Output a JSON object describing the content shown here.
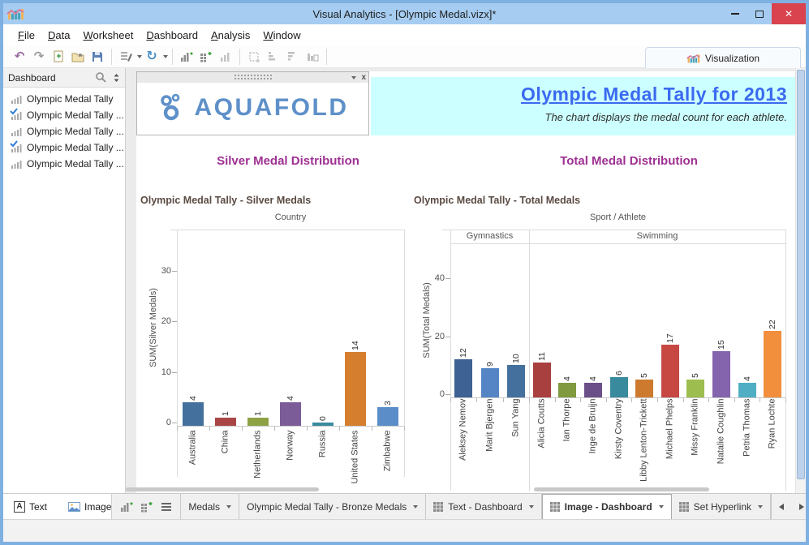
{
  "window": {
    "title": "Visual Analytics - [Olympic Medal.vizx]*"
  },
  "menu": {
    "items": [
      "File",
      "Data",
      "Worksheet",
      "Dashboard",
      "Analysis",
      "Window"
    ]
  },
  "toolbar": {
    "visualization_label": "Visualization"
  },
  "sidebar": {
    "header": "Dashboard",
    "items": [
      {
        "label": "Olympic Medal Tally",
        "checked": false
      },
      {
        "label": "Olympic Medal Tally ...",
        "checked": true
      },
      {
        "label": "Olympic Medal Tally ...",
        "checked": false
      },
      {
        "label": "Olympic Medal Tally ...",
        "checked": true
      },
      {
        "label": "Olympic Medal Tally ...",
        "checked": false
      }
    ]
  },
  "panel": {
    "logo_text": "AQUAFOLD"
  },
  "banner": {
    "title": "Olympic Medal Tally for 2013",
    "subtitle": "The chart displays the medal count for each athlete.",
    "bg_color": "#ccffff",
    "title_color": "#3a6af0"
  },
  "footer": {
    "text_button": "Text",
    "image_button": "Image"
  },
  "tabbar": {
    "tabs": [
      {
        "label": "Medals",
        "grid": false,
        "active": false
      },
      {
        "label": "Olympic Medal Tally - Bronze Medals",
        "grid": false,
        "active": false
      },
      {
        "label": "Text - Dashboard",
        "grid": true,
        "active": false
      },
      {
        "label": "Image - Dashboard",
        "grid": true,
        "active": true
      },
      {
        "label": "Set Hyperlink",
        "grid": true,
        "active": false
      }
    ]
  },
  "theme": {
    "heading_color": "#9e3192",
    "logo_color": "#5e90c9"
  },
  "chart_data": [
    {
      "type": "bar",
      "section_heading": "Silver Medal Distribution",
      "title": "Olympic Medal Tally - Silver Medals",
      "top_axis_label": "Country",
      "ylabel": "SUM(Silver Medals)",
      "yticks": [
        0,
        10,
        20,
        30
      ],
      "ylim": [
        0,
        36
      ],
      "categories": [
        "Australia",
        "China",
        "Netherlands",
        "Norway",
        "Russia",
        "United States",
        "Zimbabwe"
      ],
      "values": [
        4,
        1,
        1,
        4,
        0,
        14,
        3
      ],
      "colors": [
        "#44709d",
        "#a94545",
        "#8ca244",
        "#7b5c98",
        "#3a8a9e",
        "#d47e2e",
        "#5b8ec9"
      ]
    },
    {
      "type": "bar",
      "section_heading": "Total Medal Distribution",
      "title": "Olympic Medal Tally - Total Medals",
      "top_axis_label": "Sport / Athlete",
      "groups": [
        {
          "label": "Gymnastics",
          "count": 3
        },
        {
          "label": "Swimming",
          "count": 10
        }
      ],
      "ylabel": "SUM(Total Medals)",
      "yticks": [
        0,
        20,
        40
      ],
      "ylim": [
        0,
        50
      ],
      "categories": [
        "Aleksey Nemov",
        "Marit Bjergen",
        "Sun Yang",
        "Alicia Coutts",
        "Ian Thorpe",
        "Inge de Bruijn",
        "Kirsty Coventry",
        "Libby Lenton-Trickett",
        "Michael Phelps",
        "Missy Franklin",
        "Natalie Coughlin",
        "Petria Thomas",
        "Ryan Lochte"
      ],
      "values": [
        12,
        9,
        10,
        11,
        4,
        4,
        6,
        5,
        17,
        5,
        15,
        4,
        22
      ],
      "colors": [
        "#3d6293",
        "#5585c5",
        "#44709d",
        "#a94040",
        "#7f9a3f",
        "#6a4f88",
        "#3a8a9e",
        "#cd7a2f",
        "#c74743",
        "#9dbd4f",
        "#8464ad",
        "#50aec4",
        "#f18f3d"
      ]
    }
  ]
}
